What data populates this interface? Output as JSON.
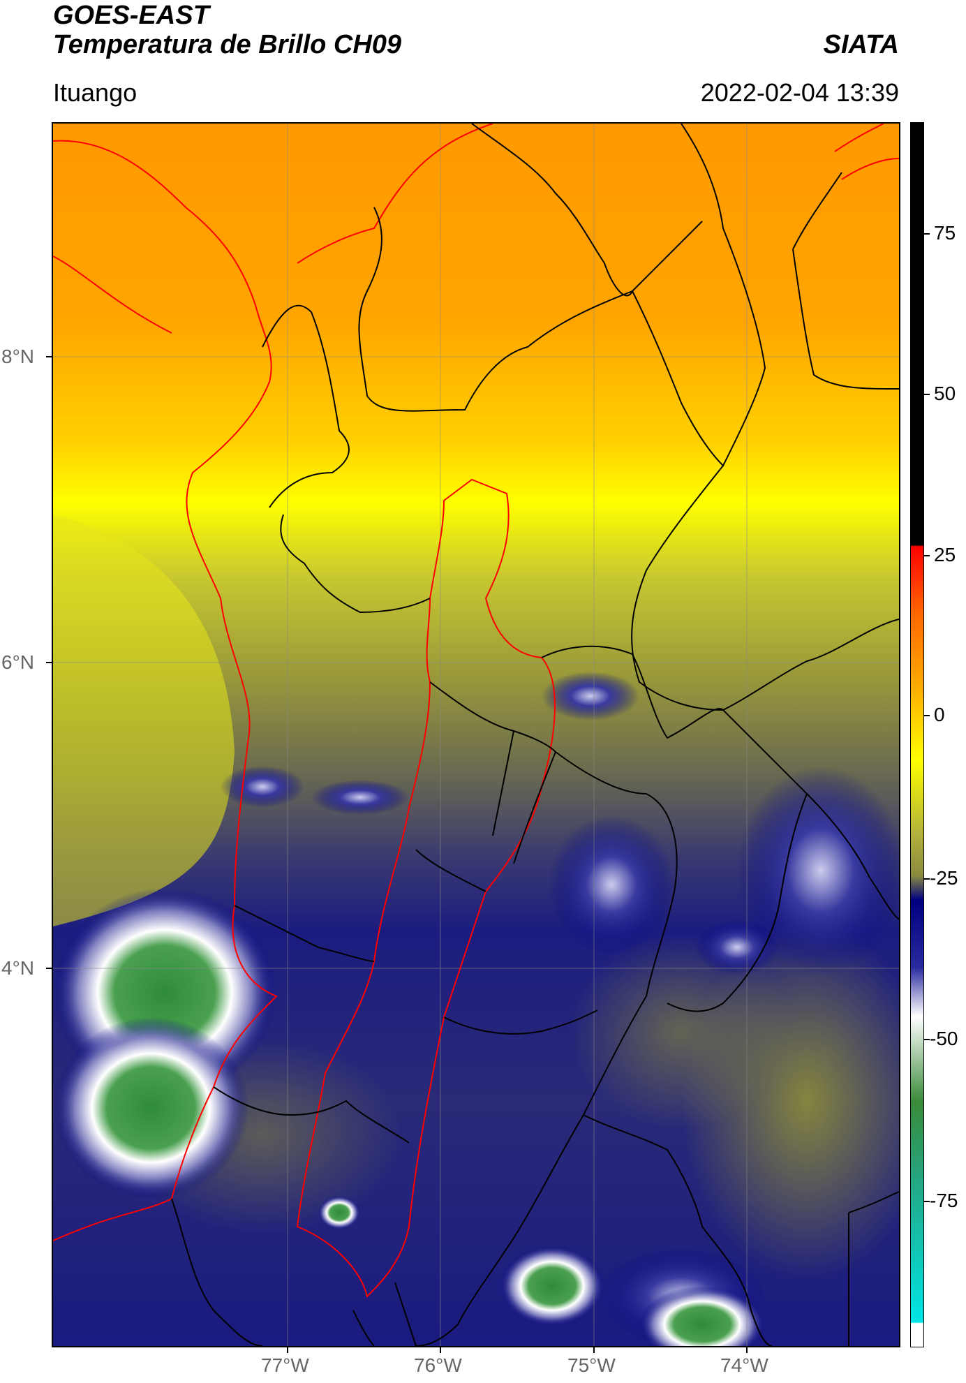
{
  "header": {
    "satellite": "GOES-EAST",
    "product": "Temperatura de Brillo CH09",
    "organization": "SIATA",
    "region": "Ituango",
    "datetime": "2022-02-04 13:39"
  },
  "map": {
    "latitude_labels": [
      "8°N",
      "6°N",
      "4°N"
    ],
    "longitude_labels": [
      "77°W",
      "76°W",
      "75°W",
      "74°W"
    ],
    "graticule": true,
    "boundary_colors": {
      "coastline": "#ff0000",
      "departments": "#000000",
      "highlight_region": "#ff0000"
    }
  },
  "colorbar": {
    "tick_labels": [
      "75",
      "50",
      "25",
      "0",
      "-25",
      "-50",
      "-75"
    ],
    "colors": {
      "hot": "#000000",
      "warm_red": "#ff0000",
      "orange": "#ff9900",
      "yellow": "#ffff00",
      "olive": "#999933",
      "navy": "#000080",
      "white": "#ffffff",
      "green": "#339933",
      "cyan": "#00e5e5"
    }
  }
}
